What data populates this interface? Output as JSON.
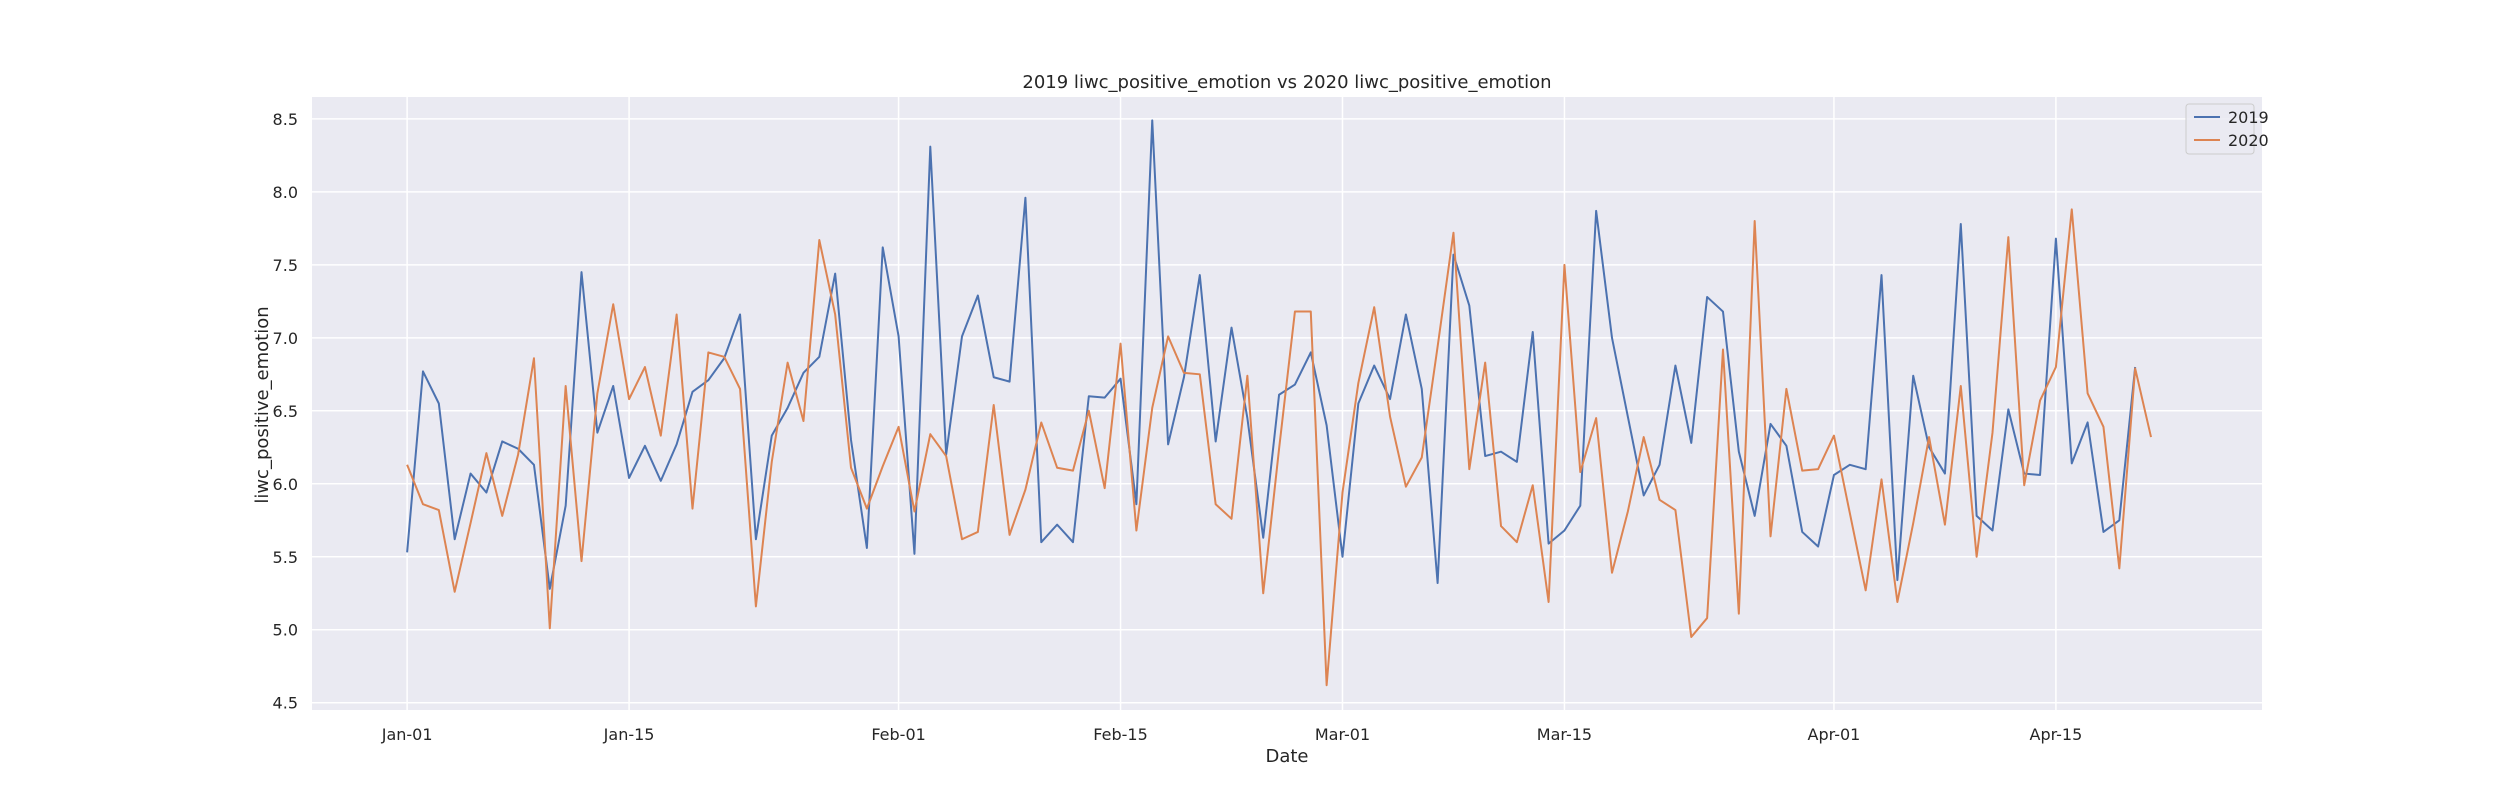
{
  "chart_data": {
    "type": "line",
    "title": "2019 liwc_positive_emotion vs 2020 liwc_positive_emotion",
    "xlabel": "Date",
    "ylabel": "liwc_positive_emotion",
    "x_start": "2019-01-01",
    "x_end": "2019-04-21",
    "xlim": [
      "2018-12-26",
      "2019-04-28"
    ],
    "ylim": [
      4.45,
      8.65
    ],
    "x_ticks": [
      {
        "date": "2019-01-01",
        "label": "Jan-01"
      },
      {
        "date": "2019-01-15",
        "label": "Jan-15"
      },
      {
        "date": "2019-02-01",
        "label": "Feb-01"
      },
      {
        "date": "2019-02-15",
        "label": "Feb-15"
      },
      {
        "date": "2019-03-01",
        "label": "Mar-01"
      },
      {
        "date": "2019-03-15",
        "label": "Mar-15"
      },
      {
        "date": "2019-04-01",
        "label": "Apr-01"
      },
      {
        "date": "2019-04-15",
        "label": "Apr-15"
      }
    ],
    "y_ticks": [
      {
        "value": 4.5,
        "label": "4.5"
      },
      {
        "value": 5.0,
        "label": "5.0"
      },
      {
        "value": 5.5,
        "label": "5.5"
      },
      {
        "value": 6.0,
        "label": "6.0"
      },
      {
        "value": 6.5,
        "label": "6.5"
      },
      {
        "value": 7.0,
        "label": "7.0"
      },
      {
        "value": 7.5,
        "label": "7.5"
      },
      {
        "value": 8.0,
        "label": "8.0"
      },
      {
        "value": 8.5,
        "label": "8.5"
      }
    ],
    "grid": true,
    "legend_position": "top-right",
    "series": [
      {
        "name": "2019",
        "color": "#4c72b0",
        "values": [
          5.53,
          6.77,
          6.55,
          5.62,
          6.07,
          5.94,
          6.29,
          6.24,
          6.13,
          5.28,
          5.85,
          7.45,
          6.35,
          6.67,
          6.04,
          6.26,
          6.02,
          6.27,
          6.63,
          6.71,
          6.86,
          7.16,
          5.62,
          6.33,
          6.52,
          6.76,
          6.87,
          7.44,
          6.3,
          5.56,
          7.62,
          7.01,
          5.52,
          8.31,
          6.2,
          7.01,
          7.29,
          6.73,
          6.7,
          7.96,
          5.6,
          5.72,
          5.6,
          6.6,
          6.59,
          6.72,
          5.86,
          8.49,
          6.27,
          6.73,
          7.43,
          6.29,
          7.07,
          6.45,
          5.63,
          6.61,
          6.68,
          6.9,
          6.4,
          5.5,
          6.55,
          6.81,
          6.58,
          7.16,
          6.65,
          5.32,
          7.57,
          7.22,
          6.19,
          6.22,
          6.15,
          7.04,
          5.59,
          5.68,
          5.85,
          7.87,
          7.0,
          6.46,
          5.92,
          6.13,
          6.81,
          6.28,
          7.28,
          7.18,
          6.22,
          5.78,
          6.41,
          6.26,
          5.67,
          5.57,
          6.06,
          6.13,
          6.1,
          7.43,
          5.34,
          6.74,
          6.25,
          6.07,
          7.78,
          5.78,
          5.68,
          6.51,
          6.07,
          6.06,
          7.68,
          6.14,
          6.42,
          5.67,
          5.75,
          6.8
        ]
      },
      {
        "name": "2020",
        "color": "#dd8452",
        "values": [
          6.13,
          5.86,
          5.82,
          5.26,
          5.73,
          6.21,
          5.78,
          6.2,
          6.86,
          5.01,
          6.67,
          5.47,
          6.62,
          7.23,
          6.58,
          6.8,
          6.33,
          7.16,
          5.83,
          6.9,
          6.87,
          6.65,
          5.16,
          6.15,
          6.83,
          6.43,
          7.67,
          7.16,
          6.11,
          5.83,
          6.12,
          6.39,
          5.81,
          6.34,
          6.19,
          5.62,
          5.67,
          6.54,
          5.65,
          5.96,
          6.42,
          6.11,
          6.09,
          6.5,
          5.97,
          6.96,
          5.68,
          6.52,
          7.01,
          6.76,
          6.75,
          5.86,
          5.76,
          6.74,
          5.25,
          6.24,
          7.18,
          7.18,
          4.62,
          5.94,
          6.69,
          7.21,
          6.46,
          5.98,
          6.18,
          6.94,
          7.72,
          6.1,
          6.83,
          5.71,
          5.6,
          5.99,
          5.19,
          7.5,
          6.08,
          6.45,
          5.39,
          5.81,
          6.32,
          5.89,
          5.82,
          4.95,
          5.08,
          6.92,
          5.11,
          7.8,
          5.64,
          6.65,
          6.09,
          6.1,
          6.33,
          5.8,
          5.27,
          6.03,
          5.19,
          5.73,
          6.32,
          5.72,
          6.67,
          5.5,
          6.35,
          7.69,
          5.99,
          6.57,
          6.8,
          7.88,
          6.62,
          6.39,
          5.42,
          6.79,
          6.32
        ]
      }
    ]
  }
}
